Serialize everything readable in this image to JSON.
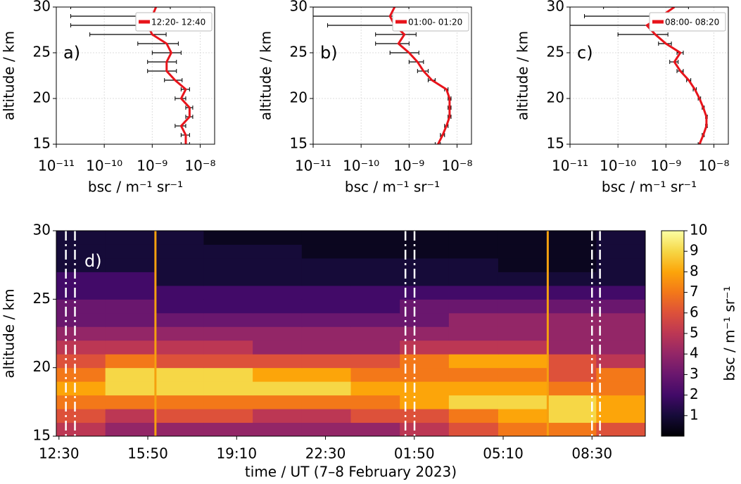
{
  "chart_data": [
    {
      "type": "line",
      "panel_label": "a)",
      "xlabel": "bsc / m⁻¹ sr⁻¹",
      "ylabel": "altitude / km",
      "log_x": true,
      "grid": true,
      "legend": "upper right",
      "xlim": [
        1e-11,
        2e-08
      ],
      "xticks": [
        {
          "value": 1e-11,
          "label": "10⁻¹¹"
        },
        {
          "value": 1e-10,
          "label": "10⁻¹⁰"
        },
        {
          "value": 1e-09,
          "label": "10⁻⁹"
        },
        {
          "value": 1e-08,
          "label": "10⁻⁸"
        }
      ],
      "ylim": [
        15,
        30
      ],
      "yticks": [
        15,
        20,
        25,
        30
      ],
      "y": [
        15,
        16,
        17,
        18,
        19,
        20,
        21,
        22,
        23,
        24,
        25,
        26,
        27,
        28,
        29,
        30
      ],
      "series": [
        {
          "name": "12:20- 12:40",
          "color": "#e8141b",
          "values": [
            5e-09,
            5e-09,
            4e-09,
            6e-09,
            6e-09,
            4e-09,
            5e-09,
            3e-09,
            2e-09,
            2e-09,
            2.5e-09,
            2e-09,
            1e-09,
            8e-10,
            1e-09,
            1.2e-09
          ],
          "errors": [
            1e-09,
            1e-09,
            1e-09,
            1e-09,
            1e-09,
            1e-09,
            1e-09,
            1.2e-09,
            1.2e-09,
            1.2e-09,
            1.5e-09,
            1.5e-09,
            9.5e-10,
            7.8e-10,
            9.8e-10,
            1.18e-09
          ]
        }
      ]
    },
    {
      "type": "line",
      "panel_label": "b)",
      "xlabel": "bsc / m⁻¹ sr⁻¹",
      "ylabel": "altitude / km",
      "log_x": true,
      "grid": true,
      "legend": "upper right",
      "xlim": [
        1e-11,
        2e-08
      ],
      "xticks": [
        {
          "value": 1e-11,
          "label": "10⁻¹¹"
        },
        {
          "value": 1e-10,
          "label": "10⁻¹⁰"
        },
        {
          "value": 1e-09,
          "label": "10⁻⁹"
        },
        {
          "value": 1e-08,
          "label": "10⁻⁸"
        }
      ],
      "ylim": [
        15,
        30
      ],
      "yticks": [
        15,
        20,
        25,
        30
      ],
      "y": [
        15,
        16,
        17,
        18,
        19,
        20,
        21,
        22,
        23,
        24,
        25,
        26,
        27,
        28,
        29,
        30
      ],
      "series": [
        {
          "name": "01:00- 01:20",
          "color": "#e8141b",
          "values": [
            4e-09,
            5e-09,
            6e-09,
            7e-09,
            7e-09,
            7e-09,
            6e-09,
            3e-09,
            2e-09,
            1.5e-09,
            1e-09,
            6e-10,
            8e-10,
            5e-10,
            4e-10,
            5e-10
          ],
          "errors": [
            5e-10,
            5e-10,
            5e-10,
            5e-10,
            5e-10,
            5e-10,
            5e-10,
            5e-10,
            5e-10,
            5e-10,
            6e-10,
            4e-10,
            6e-10,
            4.8e-10,
            3.9e-10,
            4.9e-10
          ]
        }
      ]
    },
    {
      "type": "line",
      "panel_label": "c)",
      "xlabel": "bsc / m⁻¹ sr⁻¹",
      "ylabel": "altitude / km",
      "log_x": true,
      "grid": true,
      "legend": "upper right",
      "xlim": [
        1e-11,
        2e-08
      ],
      "xticks": [
        {
          "value": 1e-11,
          "label": "10⁻¹¹"
        },
        {
          "value": 1e-10,
          "label": "10⁻¹⁰"
        },
        {
          "value": 1e-09,
          "label": "10⁻⁹"
        },
        {
          "value": 1e-08,
          "label": "10⁻⁸"
        }
      ],
      "ylim": [
        15,
        30
      ],
      "yticks": [
        15,
        20,
        25,
        30
      ],
      "y": [
        15,
        16,
        17,
        18,
        19,
        20,
        21,
        22,
        23,
        24,
        25,
        26,
        27,
        28,
        29,
        30
      ],
      "series": [
        {
          "name": "08:00- 08:20",
          "color": "#e8141b",
          "values": [
            5e-09,
            6e-09,
            7e-09,
            7e-09,
            6e-09,
            5e-09,
            4e-09,
            3e-09,
            2e-09,
            1.5e-09,
            2e-09,
            1e-09,
            6e-10,
            4e-10,
            8e-10,
            1.5e-09
          ],
          "errors": [
            3e-10,
            3e-10,
            3e-10,
            3e-10,
            3e-10,
            3e-10,
            3e-10,
            3e-10,
            3e-10,
            3e-10,
            3e-10,
            3e-10,
            5e-10,
            3.9e-10,
            7.8e-10,
            1.45e-09
          ]
        }
      ]
    },
    {
      "type": "heatmap",
      "panel_label": "d)",
      "xlabel": "time / UT (7–8 February 2023)",
      "ylabel": "altitude / km",
      "colorbar_label": "bsc / m⁻¹ sr⁻¹",
      "colormap": "inferno",
      "xlim": [
        12.4,
        34.5
      ],
      "xticks": [
        {
          "value": 12.5,
          "label": "12:30"
        },
        {
          "value": 15.833,
          "label": "15:50"
        },
        {
          "value": 19.167,
          "label": "19:10"
        },
        {
          "value": 22.5,
          "label": "22:30"
        },
        {
          "value": 25.833,
          "label": "01:50"
        },
        {
          "value": 29.167,
          "label": "05:10"
        },
        {
          "value": 32.5,
          "label": "08:30"
        }
      ],
      "ylim": [
        15,
        30
      ],
      "yticks": [
        15,
        20,
        25,
        30
      ],
      "clim": [
        0,
        10
      ],
      "cticks": [
        1,
        2,
        3,
        4,
        5,
        6,
        7,
        8,
        9,
        10
      ],
      "x_edges": [
        12.4,
        14.24,
        16.08,
        17.93,
        19.77,
        21.61,
        23.45,
        25.29,
        27.13,
        28.98,
        30.82,
        32.66,
        34.5
      ],
      "y_edges": [
        15,
        16,
        17,
        18,
        19,
        20,
        21,
        22,
        23,
        24,
        25,
        26,
        27,
        28,
        29,
        30
      ],
      "z": [
        [
          5,
          4,
          4,
          4,
          4,
          4,
          4,
          5,
          6,
          7,
          7,
          6
        ],
        [
          6,
          5,
          6,
          6,
          5,
          5,
          6,
          6,
          7,
          8,
          9,
          8
        ],
        [
          7,
          7,
          7,
          7,
          7,
          7,
          7,
          8,
          9,
          9,
          9,
          8
        ],
        [
          8,
          9,
          9,
          9,
          9,
          9,
          8,
          8,
          8,
          8,
          7,
          7
        ],
        [
          7,
          9,
          9,
          9,
          8,
          8,
          7,
          7,
          7,
          7,
          6,
          7
        ],
        [
          6,
          7,
          6,
          6,
          6,
          6,
          6,
          7,
          8,
          8,
          6,
          5
        ],
        [
          5,
          5,
          5,
          5,
          4,
          4,
          4,
          5,
          5,
          5,
          4,
          4
        ],
        [
          4,
          4,
          4,
          4,
          4,
          4,
          4,
          4,
          4,
          4,
          4,
          4
        ],
        [
          3,
          3,
          3,
          3,
          3,
          3,
          3,
          3,
          4,
          4,
          4,
          4
        ],
        [
          3,
          3,
          2,
          2,
          2,
          2,
          2,
          3,
          3,
          3,
          3,
          3
        ],
        [
          2,
          2,
          2,
          2,
          2,
          2,
          2,
          2,
          2,
          2,
          2,
          2
        ],
        [
          2,
          2,
          1,
          1,
          1,
          1,
          1,
          1,
          1,
          1,
          1,
          1
        ],
        [
          1,
          1,
          1,
          1,
          1,
          1,
          1,
          1,
          1,
          0.5,
          0.5,
          1
        ],
        [
          1,
          1,
          1,
          1,
          1,
          0.5,
          0.5,
          0.5,
          0.5,
          0.5,
          0.5,
          1
        ],
        [
          1,
          1,
          1,
          0.5,
          0.5,
          0.5,
          0.5,
          0.5,
          0.5,
          0.5,
          0.5,
          1
        ]
      ],
      "interval_lines": [
        12.76,
        13.1,
        25.5,
        25.84,
        32.5,
        32.8
      ],
      "interval_color": "#ffffff",
      "event_lines": [
        16.12,
        30.84
      ],
      "event_color": "#f5a00f"
    }
  ]
}
